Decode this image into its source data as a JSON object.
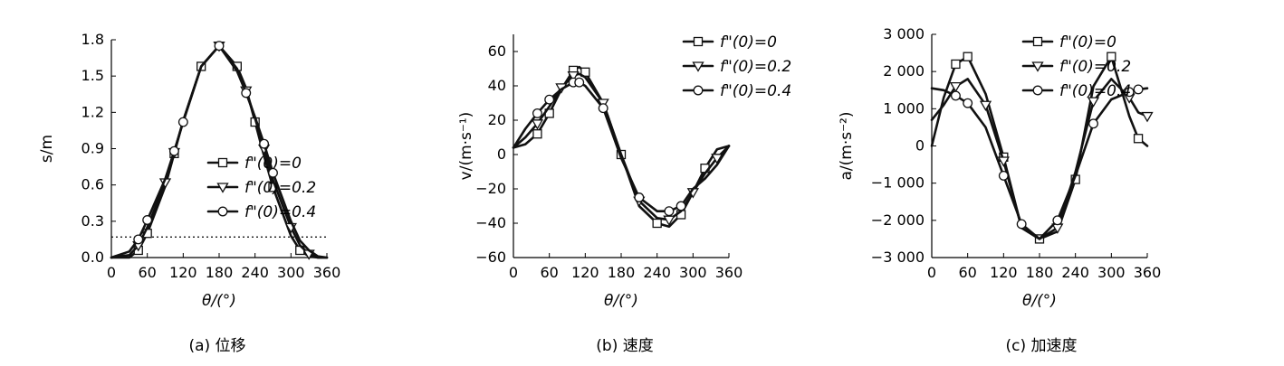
{
  "chart_data": [
    {
      "type": "line",
      "panel": "a",
      "caption": "(a) 位移",
      "xlabel": "θ/(°)",
      "ylabel": "s/m",
      "xlim": [
        0,
        360
      ],
      "ylim": [
        0,
        1.8
      ],
      "xticks": [
        "0",
        "60",
        "120",
        "180",
        "240",
        "300",
        "360"
      ],
      "yticks": [
        "0.0",
        "0.3",
        "0.6",
        "0.9",
        "1.2",
        "1.5",
        "1.8"
      ],
      "reference_line_y": 0.17,
      "legend_position": "center-right",
      "series": [
        {
          "name": "f\"(0)=0",
          "marker": "square",
          "x": [
            0,
            30,
            45,
            60,
            90,
            105,
            120,
            150,
            180,
            210,
            225,
            240,
            255,
            270,
            300,
            315,
            330,
            345,
            360
          ],
          "y": [
            0,
            0,
            0.06,
            0.2,
            0.59,
            0.86,
            1.13,
            1.58,
            1.75,
            1.58,
            1.4,
            1.12,
            0.84,
            0.58,
            0.18,
            0.06,
            0.01,
            0,
            0
          ]
        },
        {
          "name": "f\"(0)=0.2",
          "marker": "triangle",
          "x": [
            0,
            30,
            45,
            60,
            90,
            105,
            120,
            150,
            180,
            210,
            225,
            240,
            255,
            270,
            300,
            315,
            330,
            345,
            360
          ],
          "y": [
            0,
            0.02,
            0.1,
            0.25,
            0.62,
            0.87,
            1.13,
            1.58,
            1.75,
            1.56,
            1.38,
            1.15,
            0.9,
            0.64,
            0.25,
            0.1,
            0.03,
            0,
            0
          ]
        },
        {
          "name": "f\"(0)=0.4",
          "marker": "circle",
          "x": [
            0,
            30,
            45,
            60,
            90,
            105,
            120,
            150,
            180,
            210,
            225,
            240,
            255,
            270,
            300,
            315,
            330,
            345,
            360
          ],
          "y": [
            0,
            0.05,
            0.15,
            0.31,
            0.65,
            0.88,
            1.12,
            1.58,
            1.75,
            1.54,
            1.36,
            1.16,
            0.94,
            0.7,
            0.3,
            0.14,
            0.06,
            0.01,
            0
          ]
        }
      ]
    },
    {
      "type": "line",
      "panel": "b",
      "caption": "(b) 速度",
      "xlabel": "θ/(°)",
      "ylabel": "v/(m·s⁻¹)",
      "xlim": [
        0,
        360
      ],
      "ylim": [
        -60,
        70
      ],
      "xticks": [
        "0",
        "60",
        "120",
        "180",
        "240",
        "300",
        "360"
      ],
      "yticks": [
        "−60",
        "−40",
        "−20",
        "0",
        "20",
        "40",
        "60"
      ],
      "legend_position": "top-right",
      "series": [
        {
          "name": "f\"(0)=0",
          "marker": "square",
          "x": [
            0,
            20,
            40,
            60,
            80,
            100,
            110,
            120,
            150,
            180,
            210,
            240,
            260,
            280,
            300,
            320,
            340,
            360
          ],
          "y": [
            4,
            6,
            12,
            24,
            38,
            49,
            51,
            48,
            30,
            0,
            -30,
            -40,
            -42,
            -35,
            -22,
            -8,
            3,
            5
          ]
        },
        {
          "name": "f\"(0)=0.2",
          "marker": "triangle",
          "x": [
            0,
            20,
            40,
            60,
            80,
            100,
            110,
            120,
            150,
            180,
            210,
            240,
            260,
            280,
            300,
            320,
            340,
            360
          ],
          "y": [
            4,
            10,
            18,
            28,
            39,
            46,
            47,
            45,
            30,
            0,
            -27,
            -37,
            -38,
            -33,
            -22,
            -11,
            -2,
            5
          ]
        },
        {
          "name": "f\"(0)=0.4",
          "marker": "circle",
          "x": [
            0,
            20,
            40,
            60,
            80,
            100,
            110,
            120,
            150,
            180,
            210,
            240,
            260,
            280,
            300,
            320,
            340,
            360
          ],
          "y": [
            4,
            15,
            24,
            32,
            38,
            42,
            42,
            40,
            27,
            -2,
            -25,
            -33,
            -33,
            -30,
            -20,
            -14,
            -6,
            5
          ]
        }
      ]
    },
    {
      "type": "line",
      "panel": "c",
      "caption": "(c) 加速度",
      "xlabel": "θ/(°)",
      "ylabel": "a/(m·s⁻²)",
      "xlim": [
        0,
        360
      ],
      "ylim": [
        -3000,
        3000
      ],
      "xticks": [
        "0",
        "60",
        "120",
        "180",
        "240",
        "300",
        "360"
      ],
      "yticks": [
        "−3 000",
        "−2 000",
        "−1 000",
        "0",
        "1 000",
        "2 000",
        "3 000"
      ],
      "legend_position": "top-right",
      "series": [
        {
          "name": "f\"(0)=0",
          "marker": "square",
          "x": [
            0,
            20,
            40,
            60,
            90,
            120,
            150,
            180,
            210,
            240,
            270,
            300,
            330,
            345,
            360
          ],
          "y": [
            0,
            1300,
            2200,
            2400,
            1400,
            -300,
            -2200,
            -2500,
            -2300,
            -900,
            1600,
            2400,
            800,
            200,
            0
          ]
        },
        {
          "name": "f\"(0)=0.2",
          "marker": "triangle",
          "x": [
            0,
            20,
            40,
            60,
            90,
            120,
            150,
            180,
            210,
            240,
            270,
            300,
            330,
            345,
            360
          ],
          "y": [
            700,
            1100,
            1600,
            1800,
            1100,
            -400,
            -2200,
            -2500,
            -2200,
            -700,
            1200,
            1800,
            1300,
            900,
            800
          ]
        },
        {
          "name": "f\"(0)=0.4",
          "marker": "circle",
          "x": [
            0,
            20,
            40,
            60,
            90,
            120,
            150,
            180,
            210,
            240,
            270,
            300,
            330,
            345,
            360
          ],
          "y": [
            1550,
            1500,
            1350,
            1150,
            500,
            -800,
            -2100,
            -2500,
            -2000,
            -800,
            600,
            1250,
            1450,
            1520,
            1550
          ]
        }
      ]
    }
  ]
}
